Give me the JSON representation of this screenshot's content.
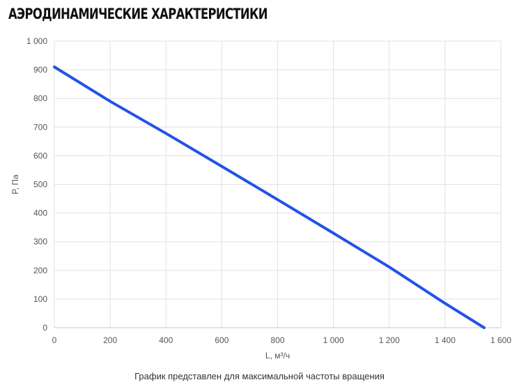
{
  "page": {
    "title": "АЭРОДИНАМИЧЕСКИЕ ХАРАКТЕРИСТИКИ",
    "caption": "График представлен для максимальной частоты вращения"
  },
  "colors": {
    "series": "#2352e8",
    "grid": "#e0e0e0",
    "axis": "#c8c8c8"
  },
  "chart_data": {
    "type": "line",
    "xlabel": "L, м³/ч",
    "ylabel": "P, Па",
    "xlim": [
      0,
      1600
    ],
    "ylim": [
      0,
      1000
    ],
    "x_ticks": [
      0,
      200,
      400,
      600,
      800,
      1000,
      1200,
      1400,
      1600
    ],
    "x_tick_labels": [
      "0",
      "200",
      "400",
      "600",
      "800",
      "1 000",
      "1 200",
      "1 400",
      "1 600"
    ],
    "y_ticks": [
      0,
      100,
      200,
      300,
      400,
      500,
      600,
      700,
      800,
      900,
      1000
    ],
    "y_tick_labels": [
      "0",
      "100",
      "200",
      "300",
      "400",
      "500",
      "600",
      "700",
      "800",
      "900",
      "1 000"
    ],
    "grid": true,
    "series": [
      {
        "x": [
          0,
          200,
          400,
          600,
          800,
          1000,
          1200,
          1400,
          1540
        ],
        "y": [
          910,
          790,
          678,
          563,
          447,
          330,
          212,
          85,
          0
        ]
      }
    ]
  }
}
